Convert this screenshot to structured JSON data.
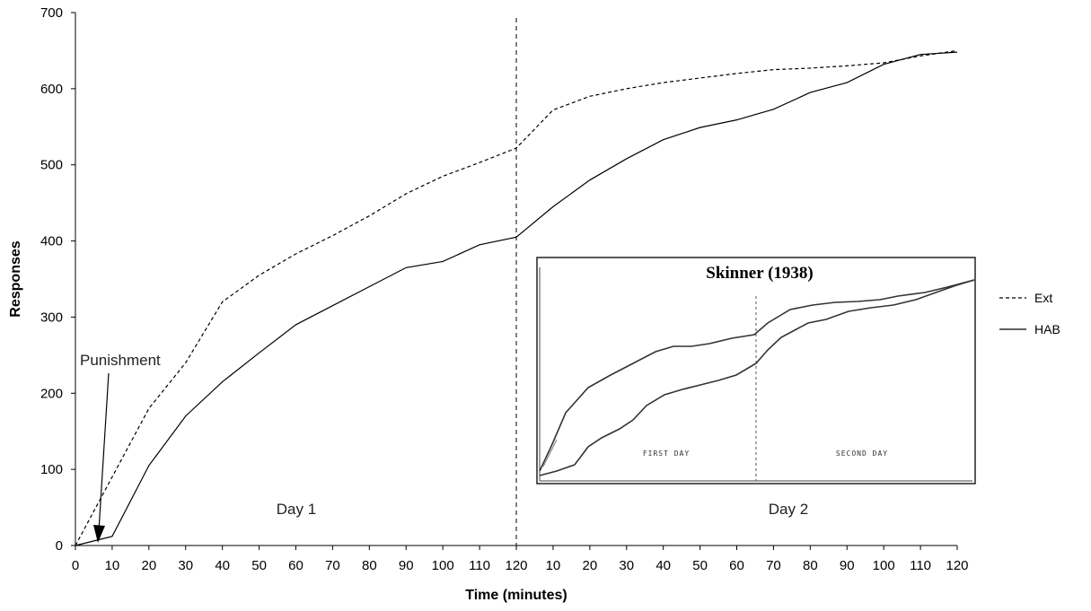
{
  "chart_data": {
    "type": "line",
    "xlabel": "Time (minutes)",
    "ylabel": "Responses",
    "ylim": [
      0,
      700
    ],
    "yticks": [
      0,
      100,
      200,
      300,
      400,
      500,
      600,
      700
    ],
    "x_tick_labels": [
      "0",
      "10",
      "20",
      "30",
      "40",
      "50",
      "60",
      "70",
      "80",
      "90",
      "100",
      "110",
      "120",
      "10",
      "20",
      "30",
      "40",
      "50",
      "60",
      "70",
      "80",
      "90",
      "100",
      "110",
      "120"
    ],
    "grid": false,
    "legend_position": "right",
    "series": [
      {
        "name": "Ext",
        "style": "dashed",
        "x": [
          0,
          10,
          20,
          30,
          40,
          50,
          60,
          70,
          80,
          90,
          100,
          110,
          120,
          130,
          140,
          150,
          160,
          170,
          180,
          190,
          200,
          210,
          220,
          230,
          240
        ],
        "values": [
          0,
          90,
          180,
          240,
          320,
          355,
          383,
          407,
          433,
          462,
          485,
          503,
          522,
          572,
          590,
          600,
          608,
          614,
          620,
          625,
          627,
          630,
          634,
          643,
          650
        ]
      },
      {
        "name": "HAB",
        "style": "solid",
        "x": [
          0,
          10,
          20,
          30,
          40,
          50,
          60,
          70,
          80,
          90,
          100,
          110,
          120,
          130,
          140,
          150,
          160,
          170,
          180,
          190,
          200,
          210,
          220,
          230,
          240
        ],
        "values": [
          0,
          12,
          105,
          170,
          215,
          253,
          290,
          315,
          340,
          365,
          373,
          395,
          405,
          445,
          480,
          508,
          533,
          549,
          559,
          573,
          595,
          608,
          632,
          645,
          648
        ]
      }
    ],
    "day_divider_x": 120,
    "annotations": {
      "punishment": "Punishment",
      "day1": "Day 1",
      "day2": "Day 2"
    }
  },
  "inset": {
    "title": "Skinner (1938)",
    "first_day": "FIRST DAY",
    "second_day": "SECOND DAY"
  }
}
